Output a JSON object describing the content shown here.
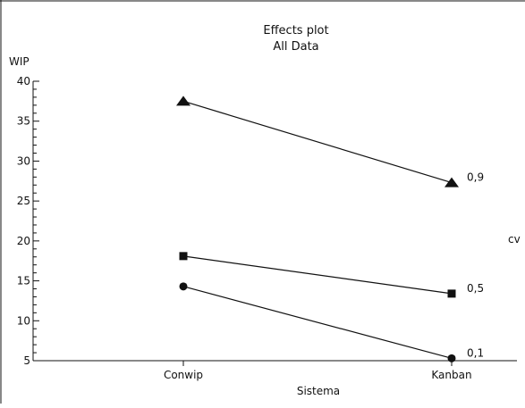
{
  "chart_data": {
    "type": "line",
    "title": "Effects plot",
    "subtitle": "All Data",
    "xlabel": "Sistema",
    "ylabel": "WIP",
    "legend_title": "cv",
    "categories": [
      "Conwip",
      "Kanban"
    ],
    "ylim": [
      5,
      40
    ],
    "yticks": [
      5,
      10,
      15,
      20,
      25,
      30,
      35,
      40
    ],
    "series": [
      {
        "name": "0,9",
        "marker": "triangle",
        "values": [
          37.5,
          27.3
        ]
      },
      {
        "name": "0,5",
        "marker": "square",
        "values": [
          18.1,
          13.4
        ]
      },
      {
        "name": "0,1",
        "marker": "circle",
        "values": [
          14.3,
          5.3
        ]
      }
    ],
    "colors": {
      "line": "#111111",
      "marker": "#111111",
      "axis": "#111111"
    },
    "grid": false
  }
}
